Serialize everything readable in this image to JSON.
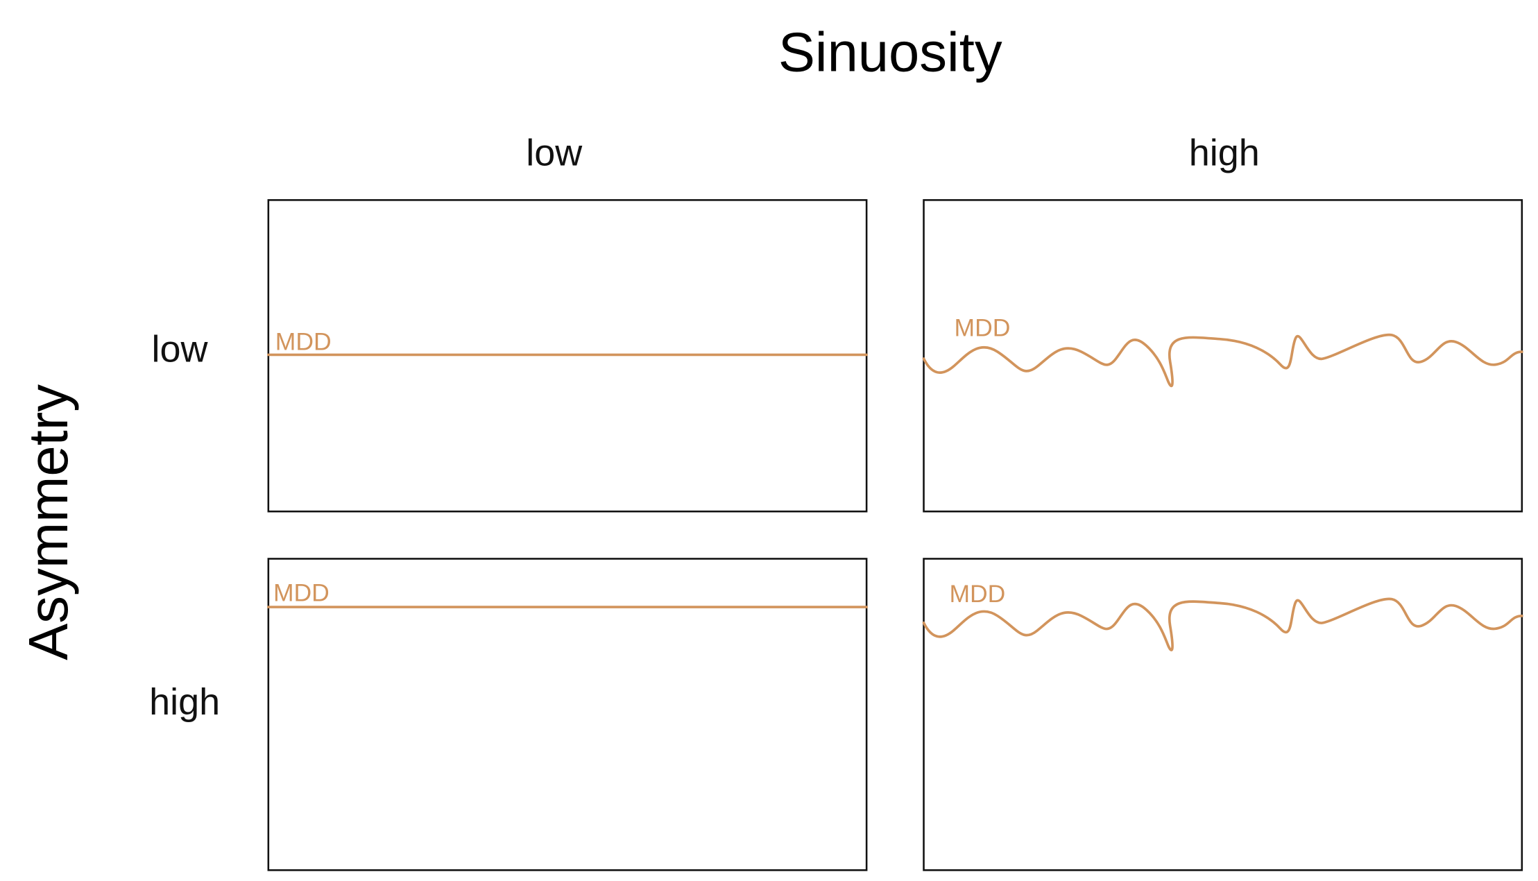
{
  "title": "Sinuosity",
  "columns": [
    "low",
    "high"
  ],
  "row_title": "Asymmetry",
  "rows": [
    "low",
    "high"
  ],
  "panels": [
    {
      "label": "MDD"
    },
    {
      "label": "MDD"
    },
    {
      "label": "MDD"
    },
    {
      "label": "MDD"
    }
  ]
}
